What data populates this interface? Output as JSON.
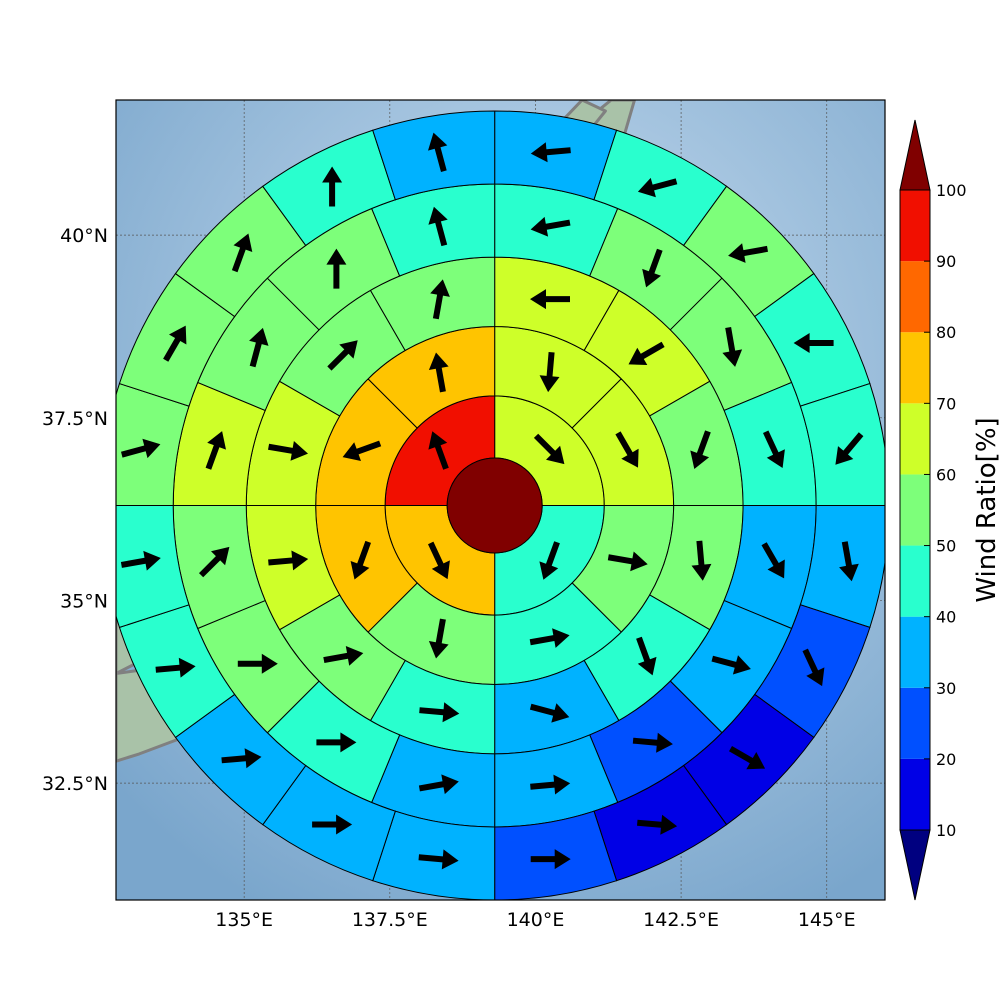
{
  "map": {
    "lon_range": [
      132.8,
      146.0
    ],
    "lat_range": [
      30.9,
      41.85
    ],
    "lon_ticks": [
      135,
      137.5,
      140,
      142.5,
      145
    ],
    "lat_ticks": [
      32.5,
      35,
      37.5,
      40
    ],
    "lon_tick_labels": [
      "135°E",
      "137.5°E",
      "140°E",
      "142.5°E",
      "145°E"
    ],
    "lat_tick_labels": [
      "32.5°N",
      "35°N",
      "37.5°N",
      "40°N"
    ],
    "gridlines": true,
    "ocean_color": "#8db4d6",
    "land_color": "#a9c2a8",
    "coast_color": "#808080"
  },
  "chart_data": {
    "type": "polar_heatmap",
    "description_units": "Wind Ratio[%]",
    "center_lon": 139.3,
    "center_lat": 36.3,
    "ring_radii_deg": [
      0.65,
      1.5,
      2.45,
      3.4,
      4.4,
      5.4
    ],
    "center_value": 100,
    "rings": [
      {
        "sectors": 4,
        "values": [
          65,
          45,
          75,
          95
        ]
      },
      {
        "sectors": 8,
        "values": [
          65,
          65,
          55,
          45,
          55,
          75,
          75,
          75
        ]
      },
      {
        "sectors": 12,
        "values": [
          65,
          65,
          55,
          55,
          45,
          35,
          45,
          55,
          65,
          65,
          55,
          55
        ]
      },
      {
        "sectors": 16,
        "values": [
          45,
          55,
          55,
          45,
          35,
          35,
          25,
          35,
          35,
          45,
          55,
          55,
          65,
          55,
          55,
          45
        ]
      },
      {
        "sectors": 20,
        "values": [
          35,
          45,
          55,
          45,
          45,
          35,
          25,
          15,
          15,
          25,
          35,
          35,
          35,
          45,
          45,
          55,
          55,
          55,
          45,
          35
        ]
      }
    ],
    "arrow_directions_deg": [
      [
        135,
        200,
        155,
        340
      ],
      [
        185,
        150,
        100,
        80,
        190,
        200,
        250,
        350
      ],
      [
        270,
        240,
        200,
        175,
        160,
        105,
        95,
        80,
        85,
        100,
        45,
        10
      ],
      [
        260,
        200,
        170,
        155,
        150,
        105,
        95,
        85,
        80,
        90,
        90,
        45,
        20,
        15,
        0,
        345
      ],
      [
        265,
        255,
        260,
        270,
        220,
        170,
        155,
        120,
        95,
        90,
        95,
        90,
        85,
        85,
        80,
        75,
        30,
        20,
        0,
        345
      ]
    ]
  },
  "colorbar": {
    "label": "Wind Ratio[%]",
    "ticks": [
      10,
      20,
      30,
      40,
      50,
      60,
      70,
      80,
      90,
      100
    ],
    "tick_labels": [
      "10",
      "20",
      "30",
      "40",
      "50",
      "60",
      "70",
      "80",
      "90",
      "100"
    ],
    "levels": [
      {
        "range": [
          10,
          20
        ],
        "color": "#0000e6"
      },
      {
        "range": [
          20,
          30
        ],
        "color": "#0050ff"
      },
      {
        "range": [
          30,
          40
        ],
        "color": "#00b2ff"
      },
      {
        "range": [
          40,
          50
        ],
        "color": "#29ffce"
      },
      {
        "range": [
          50,
          60
        ],
        "color": "#7dff7a"
      },
      {
        "range": [
          60,
          70
        ],
        "color": "#ceff29"
      },
      {
        "range": [
          70,
          80
        ],
        "color": "#ffc400"
      },
      {
        "range": [
          80,
          90
        ],
        "color": "#ff6800"
      },
      {
        "range": [
          90,
          100
        ],
        "color": "#f10f00"
      }
    ],
    "under_color": "#000080",
    "over_color": "#800000"
  }
}
